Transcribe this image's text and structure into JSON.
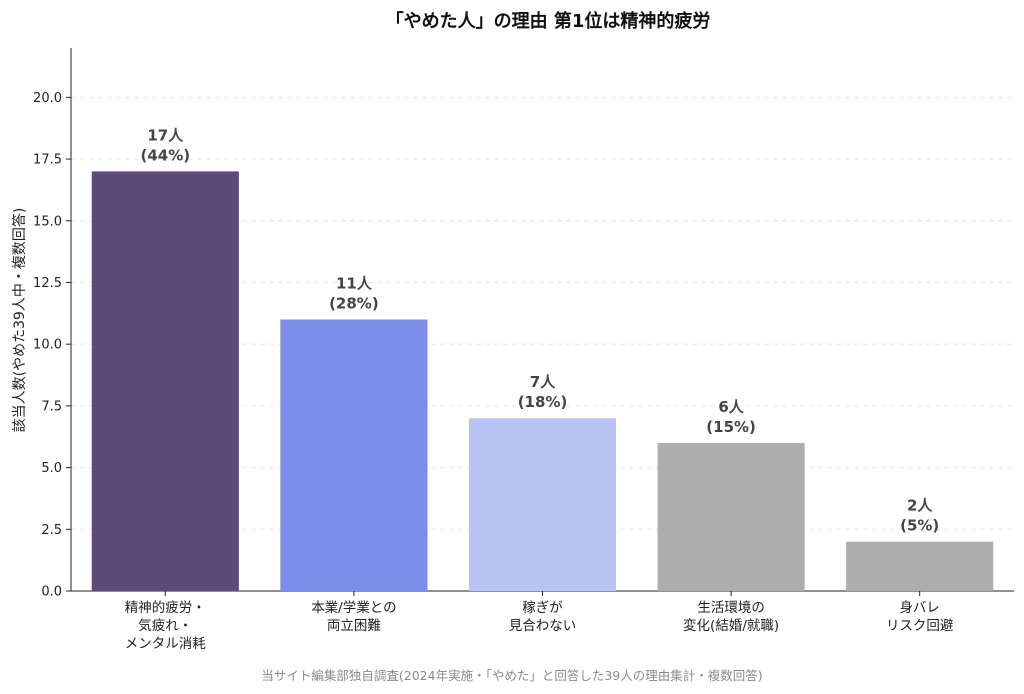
{
  "chart_data": {
    "type": "bar",
    "title": "「やめた人」の理由 第1位は精神的疲労",
    "ylabel": "該当人数(やめた39人中・複数回答)",
    "xlabel": "",
    "ylim": [
      0,
      22
    ],
    "yticks": [
      "0.0",
      "2.5",
      "5.0",
      "7.5",
      "10.0",
      "12.5",
      "15.0",
      "17.5",
      "20.0"
    ],
    "grid": true,
    "categories": [
      [
        "精神的疲労・",
        "気疲れ・",
        "メンタル消耗"
      ],
      [
        "本業/学業との",
        "両立困難"
      ],
      [
        "稼ぎが",
        "見合わない"
      ],
      [
        "生活環境の",
        "変化(結婚/就職)"
      ],
      [
        "身バレ",
        "リスク回避"
      ]
    ],
    "values": [
      17,
      11,
      7,
      6,
      2
    ],
    "data_labels": [
      [
        "17人",
        "(44%)"
      ],
      [
        "11人",
        "(28%)"
      ],
      [
        "7人",
        "(18%)"
      ],
      [
        "6人",
        "(15%)"
      ],
      [
        "2人",
        "(5%)"
      ]
    ],
    "colors": [
      "#5b4b7a",
      "#7b8de8",
      "#b7c3f3",
      "#adadad",
      "#adadad"
    ],
    "source": "当サイト編集部独自調査(2024年実施・「やめた」と回答した39人の理由集計・複数回答)"
  }
}
